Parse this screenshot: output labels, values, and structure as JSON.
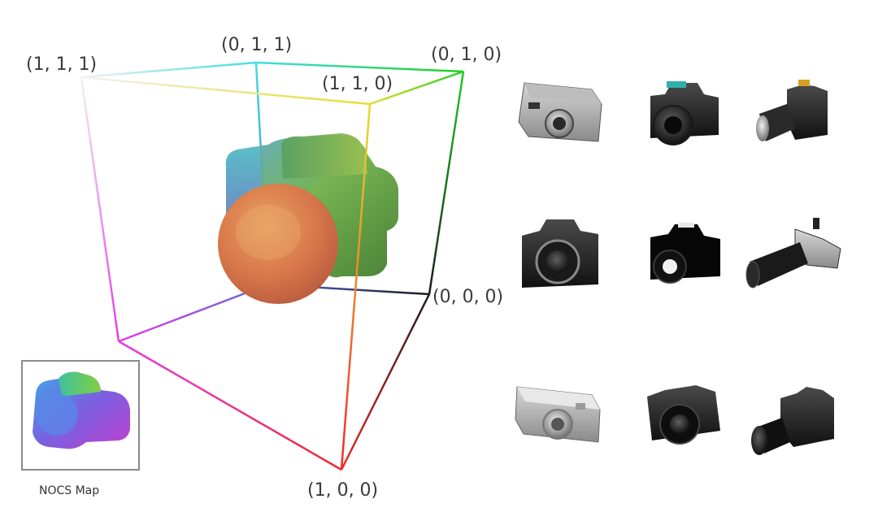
{
  "cube": {
    "corners": [
      {
        "id": "c111",
        "label": "(1, 1, 1)",
        "color": "#ffffff"
      },
      {
        "id": "c011",
        "label": "(0, 1, 1)",
        "color": "#00ffff"
      },
      {
        "id": "c010",
        "label": "(0, 1, 0)",
        "color": "#00ff00"
      },
      {
        "id": "c110",
        "label": "(1, 1, 0)",
        "color": "#ffff00"
      },
      {
        "id": "c000",
        "label": "(0, 0, 0)",
        "color": "#000000"
      },
      {
        "id": "c100",
        "label": "(1, 0, 0)",
        "color": "#ff0000"
      },
      {
        "id": "c101",
        "label": "",
        "color": "#ff00ff"
      },
      {
        "id": "c001",
        "label": "",
        "color": "#0000ff"
      }
    ]
  },
  "inset": {
    "caption": "NOCS Map"
  },
  "camera_grid": {
    "items": [
      {
        "name": "compact-camera-gray"
      },
      {
        "name": "dslr-camera-dark"
      },
      {
        "name": "dslr-zoom-camera-dark"
      },
      {
        "name": "dslr-camera-front-black"
      },
      {
        "name": "dslr-camera-black"
      },
      {
        "name": "long-lens-camera"
      },
      {
        "name": "compact-camera-silver"
      },
      {
        "name": "bridge-camera-black"
      },
      {
        "name": "dslr-camera-side-black"
      }
    ]
  }
}
